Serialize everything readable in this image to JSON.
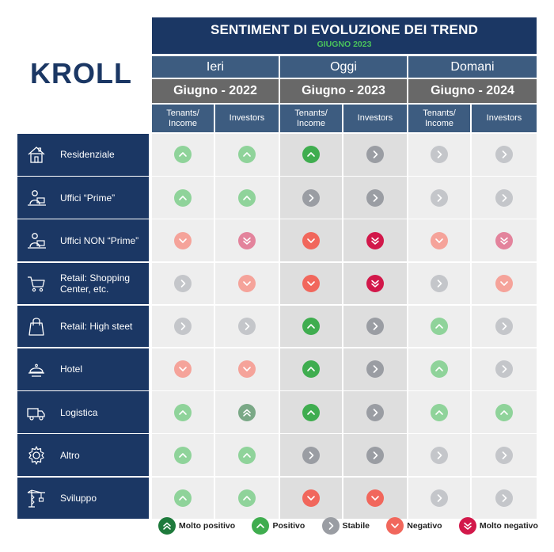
{
  "logo": {
    "text": "KROLL"
  },
  "header": {
    "title": "SENTIMENT DI EVOLUZIONE DEI TREND",
    "subtitle": "GIUGNO 2023"
  },
  "periods": [
    {
      "label": "Ieri",
      "date": "Giugno - 2022"
    },
    {
      "label": "Oggi",
      "date": "Giugno - 2023"
    },
    {
      "label": "Domani",
      "date": "Giugno - 2024"
    }
  ],
  "columns": [
    "Tenants/\nIncome",
    "Investors",
    "Tenants/\nIncome",
    "Investors",
    "Tenants/\nIncome",
    "Investors"
  ],
  "rows": [
    {
      "label": "Residenziale",
      "icon": "house-icon",
      "values": [
        "pos-light",
        "pos-light",
        "pos",
        "stable",
        "stable-light",
        "stable-light"
      ]
    },
    {
      "label": "Uffici “Prime”",
      "icon": "desk-worker-icon",
      "values": [
        "pos-light",
        "pos-light",
        "stable",
        "stable",
        "stable-light",
        "stable-light"
      ]
    },
    {
      "label": "Uffici NON “Prime”",
      "icon": "desk-worker-icon",
      "values": [
        "neg-light",
        "vneg-light",
        "neg",
        "vneg",
        "neg-light",
        "vneg-light"
      ]
    },
    {
      "label": "Retail: Shopping\nCenter, etc.",
      "icon": "cart-icon",
      "values": [
        "stable-light",
        "neg-light",
        "neg",
        "vneg",
        "stable-light",
        "neg-light"
      ]
    },
    {
      "label": "Retail: High steet",
      "icon": "shopping-bag-icon",
      "values": [
        "stable-light",
        "stable-light",
        "pos",
        "stable",
        "pos-light",
        "stable-light"
      ]
    },
    {
      "label": "Hotel",
      "icon": "cloche-icon",
      "values": [
        "neg-light",
        "neg-light",
        "pos",
        "stable",
        "pos-light",
        "stable-light"
      ]
    },
    {
      "label": "Logistica",
      "icon": "truck-icon",
      "values": [
        "pos-light",
        "vpos-light",
        "pos",
        "stable",
        "pos-light",
        "pos-light"
      ]
    },
    {
      "label": "Altro",
      "icon": "gear-icon",
      "values": [
        "pos-light",
        "pos-light",
        "stable",
        "stable",
        "stable-light",
        "stable-light"
      ]
    },
    {
      "label": "Sviluppo",
      "icon": "crane-icon",
      "values": [
        "pos-light",
        "pos-light",
        "neg",
        "neg",
        "stable-light",
        "stable-light"
      ]
    }
  ],
  "legend": [
    {
      "key": "vpos",
      "label": "Molto positivo"
    },
    {
      "key": "pos",
      "label": "Positivo"
    },
    {
      "key": "stable",
      "label": "Stabile"
    },
    {
      "key": "neg",
      "label": "Negativo"
    },
    {
      "key": "vneg",
      "label": "Molto negativo"
    }
  ],
  "colors": {
    "navy": "#1b3764",
    "vpos": "#1e7a3c",
    "vpos-light": "#7aa886",
    "pos": "#3fad4f",
    "pos-light": "#8fd39a",
    "stable": "#9a9da3",
    "stable-light": "#c4c6ca",
    "neg": "#f1675c",
    "neg-light": "#f5a39a",
    "vneg": "#d2184a",
    "vneg-light": "#e3839c"
  }
}
